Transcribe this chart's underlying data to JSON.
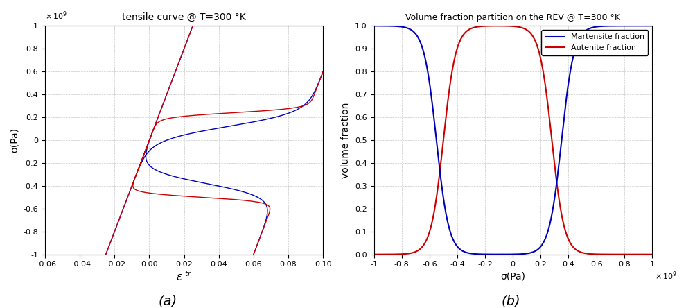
{
  "plot_a": {
    "title": "tensile curve @ T=300 °K",
    "xlabel_base": "ε",
    "xlabel_sup": "tr",
    "ylabel": "σ(Pa)",
    "xlim": [
      -0.06,
      0.1
    ],
    "ylim": [
      -1.0,
      1.0
    ],
    "xticks": [
      -0.06,
      -0.04,
      -0.02,
      0,
      0.02,
      0.04,
      0.06,
      0.08,
      0.1
    ],
    "yticks": [
      -1,
      -0.8,
      -0.6,
      -0.4,
      -0.2,
      0,
      0.2,
      0.4,
      0.6,
      0.8,
      1
    ],
    "blue_color": "#0000bb",
    "red_color": "#cc0000",
    "background": "#ffffff",
    "grid_color": "#bbbbbb"
  },
  "plot_b": {
    "title": "Volume fraction partition on the REV @ T=300 °K",
    "xlabel": "σ(Pa)",
    "ylabel": "volume fraction",
    "xlim": [
      -1.0,
      1.0
    ],
    "ylim": [
      0,
      1
    ],
    "xticks": [
      -1,
      -0.8,
      -0.6,
      -0.4,
      -0.2,
      0,
      0.2,
      0.4,
      0.6,
      0.8,
      1
    ],
    "yticks": [
      0,
      0.1,
      0.2,
      0.3,
      0.4,
      0.5,
      0.6,
      0.7,
      0.8,
      0.9,
      1.0
    ],
    "blue_color": "#0000bb",
    "red_color": "#cc0000",
    "legend_blue": "Martensite fraction",
    "legend_red": "Autenite fraction",
    "background": "#ffffff",
    "grid_color": "#bbbbbb"
  },
  "label_a": "(a)",
  "label_b": "(b)"
}
